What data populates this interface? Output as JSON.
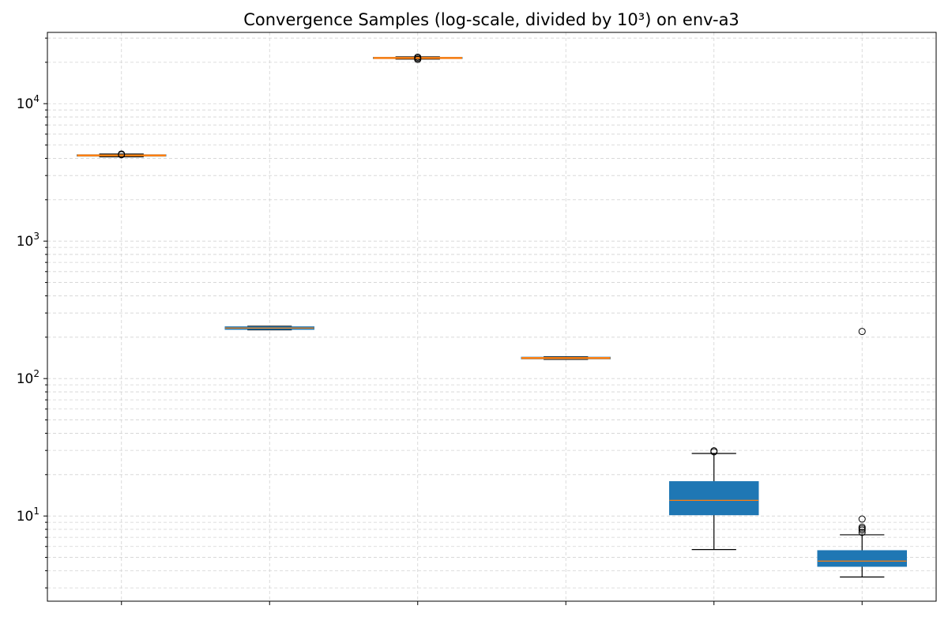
{
  "chart_data": {
    "type": "box",
    "title": "Convergence Samples (log-scale, divided by 10³) on env-a3",
    "xlabel": "",
    "ylabel": "",
    "yscale": "log",
    "ylim": [
      2.4,
      33000
    ],
    "grid": true,
    "y_ticks": [
      {
        "value": 10,
        "base": "10",
        "exp": "1"
      },
      {
        "value": 100,
        "base": "10",
        "exp": "2"
      },
      {
        "value": 1000,
        "base": "10",
        "exp": "3"
      },
      {
        "value": 10000,
        "base": "10",
        "exp": "4"
      }
    ],
    "colors": {
      "box_fill": "#1f77b4",
      "median": "#ff7f0e",
      "whisker": "#000000",
      "grid": "#d3d3d3"
    },
    "boxes": [
      {
        "q1": 4150,
        "median": 4200,
        "q3": 4250,
        "whislo": 4100,
        "whishi": 4300,
        "fliers": [
          4250,
          4300
        ]
      },
      {
        "q1": 228,
        "median": 233,
        "q3": 238,
        "whislo": 226,
        "whishi": 240,
        "fliers": []
      },
      {
        "q1": 21300,
        "median": 21500,
        "q3": 21700,
        "whislo": 21100,
        "whishi": 21900,
        "fliers": [
          21000,
          21400,
          21800
        ]
      },
      {
        "q1": 139,
        "median": 141,
        "q3": 143,
        "whislo": 138,
        "whishi": 144,
        "fliers": []
      },
      {
        "q1": 10.2,
        "median": 13.0,
        "q3": 17.8,
        "whislo": 5.7,
        "whishi": 28.5,
        "fliers": [
          29.3,
          29.8
        ]
      },
      {
        "q1": 4.3,
        "median": 4.7,
        "q3": 5.6,
        "whislo": 3.6,
        "whishi": 7.3,
        "fliers": [
          7.6,
          7.9,
          8.1,
          8.3,
          9.5,
          220
        ]
      }
    ]
  }
}
